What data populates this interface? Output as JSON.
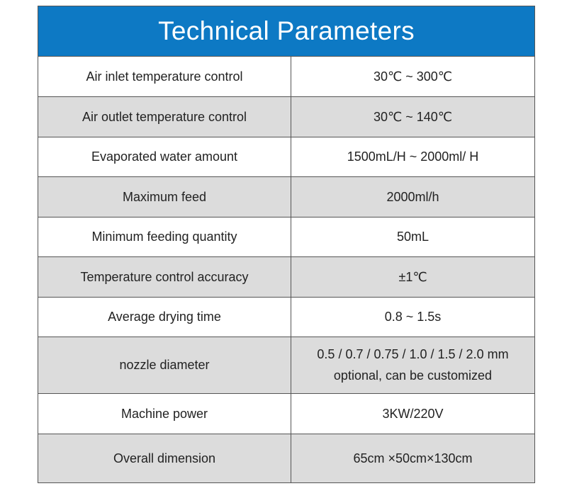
{
  "title": "Technical Parameters",
  "colors": {
    "header_bg": "#0d79c4",
    "header_text": "#ffffff",
    "shaded_row": "#dcdcdc",
    "border": "#555555"
  },
  "rows": [
    {
      "label": "Air inlet temperature control",
      "value": "30℃ ~ 300℃"
    },
    {
      "label": "Air outlet temperature control",
      "value": "30℃ ~ 140℃"
    },
    {
      "label": "Evaporated water amount",
      "value": "1500mL/H ~ 2000ml/ H"
    },
    {
      "label": "Maximum feed",
      "value": "2000ml/h"
    },
    {
      "label": "Minimum feeding quantity",
      "value": "50mL"
    },
    {
      "label": "Temperature control accuracy",
      "value": "±1℃"
    },
    {
      "label": "Average drying time",
      "value": "0.8 ~ 1.5s"
    },
    {
      "label": "nozzle diameter",
      "value": "0.5 / 0.7 / 0.75 / 1.0 / 1.5 / 2.0 mm",
      "value_line2": "optional, can be customized"
    },
    {
      "label": "Machine power",
      "value": "3KW/220V"
    },
    {
      "label": "Overall dimension",
      "value": "65cm ×50cm×130cm"
    }
  ]
}
